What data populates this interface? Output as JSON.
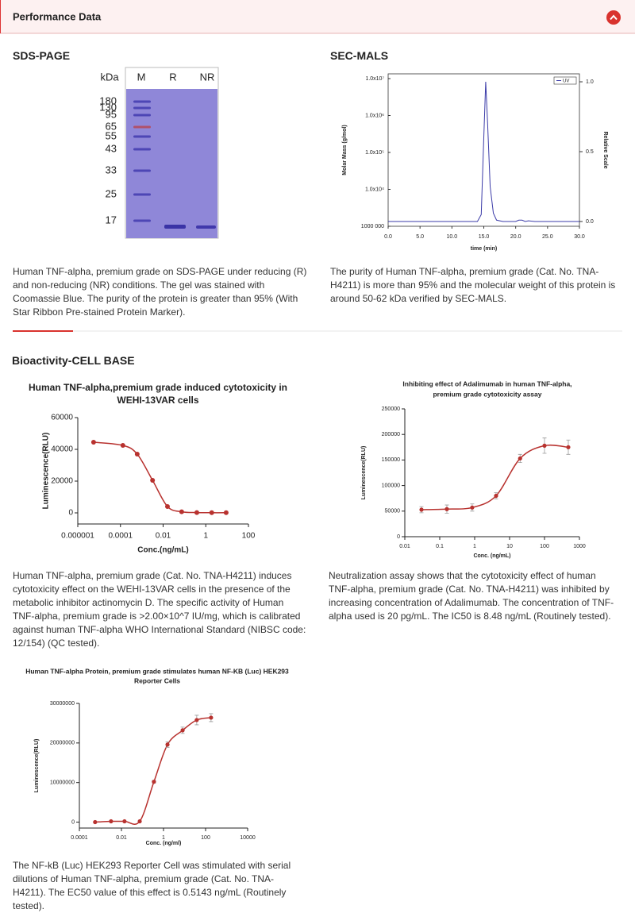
{
  "header": {
    "title": "Performance Data"
  },
  "sds_page": {
    "heading": "SDS-PAGE",
    "gel": {
      "column_labels": [
        "kDa",
        "M",
        "R",
        "NR"
      ],
      "marker_kda": [
        180,
        130,
        95,
        65,
        55,
        43,
        33,
        25,
        17
      ]
    },
    "caption": "Human TNF-alpha, premium grade on SDS-PAGE under reducing (R) and non-reducing (NR) conditions. The gel was stained with Coomassie Blue. The purity of the protein is greater than 95% (With Star Ribbon Pre-stained Protein Marker)."
  },
  "sec_mals": {
    "heading": "SEC-MALS",
    "chart_data": {
      "type": "line",
      "x_label": "time (min)",
      "y_label": "Molar Mass (g/mol)",
      "y2_label": "Relative Scale",
      "ytick_labels": [
        "1.0x10⁷",
        "1.0x10⁶",
        "1.0x10⁵",
        "1.0x10⁴",
        "1000 000"
      ],
      "x": [
        0,
        14,
        14.6,
        15,
        15.3,
        15.6,
        16,
        16.5,
        17,
        18,
        20,
        20.5,
        21,
        21.5,
        22,
        23,
        30
      ],
      "series": [
        {
          "name": "UV",
          "color": "#3b3ba8",
          "axis": "y2",
          "values": [
            0,
            0,
            0.05,
            0.6,
            1.0,
            0.7,
            0.25,
            0.06,
            0.01,
            0,
            0,
            0.01,
            0.01,
            0,
            0.005,
            0,
            0
          ]
        }
      ],
      "xlim": [
        0,
        30
      ],
      "xticks": [
        {
          "value": 0,
          "label": "0.0"
        },
        {
          "value": 5,
          "label": "5.0"
        },
        {
          "value": 10,
          "label": "10.0"
        },
        {
          "value": 15,
          "label": "15.0"
        },
        {
          "value": 20,
          "label": "20.0"
        },
        {
          "value": 25,
          "label": "25.0"
        },
        {
          "value": 30,
          "label": "30.0"
        }
      ],
      "y2lim": [
        -0.034,
        1.057
      ],
      "y2ticks": [
        {
          "value": 0,
          "label": "0.0"
        },
        0.5,
        {
          "value": 1,
          "label": "1.0"
        }
      ],
      "legend": "top-right"
    },
    "caption": "The purity of Human TNF-alpha, premium grade (Cat. No. TNA-H4211) is more than 95% and the molecular weight of this protein is around 50-62 kDa verified by SEC-MALS."
  },
  "bioactivity": {
    "heading": "Bioactivity-CELL BASE",
    "assays": [
      {
        "chart_data": {
          "type": "scatter",
          "xscale": "log",
          "color": "#b8322f",
          "title": [
            "Human TNF-alpha,premium grade induced cytotoxicity in",
            "WEHI-13VAR cells"
          ],
          "x_label": "Conc.(ng/mL)",
          "y_label": "Luminescence(RLU)",
          "x": [
            5.5e-06,
            0.00013,
            0.00061,
            0.0032,
            0.016,
            0.074,
            0.38,
            1.9,
            9.0
          ],
          "values": [
            44500,
            42500,
            37000,
            20500,
            4000,
            700,
            200,
            100,
            100
          ],
          "xlim": [
            1e-06,
            100
          ],
          "xticks": [
            1e-06,
            0.0001,
            0.01,
            1,
            100
          ],
          "ylim": [
            -7000,
            60000
          ],
          "yticks": [
            0,
            20000,
            40000,
            60000
          ]
        },
        "caption": "Human TNF-alpha, premium grade (Cat. No. TNA-H4211) induces cytotoxicity effect on the WEHI-13VAR cells in the presence of the metabolic inhibitor actinomycin D. The specific activity of Human TNF-alpha, premium grade is >2.00×10^7 IU/mg, which is calibrated against human TNF-alpha WHO International Standard (NIBSC code: 12/154) (QC tested)."
      },
      {
        "chart_data": {
          "type": "scatter",
          "xscale": "log",
          "color": "#b8322f",
          "title": [
            "Inhibiting effect of Adalimumab in human TNF-alpha,",
            "premium grade cytotoxicity assay"
          ],
          "x_label": "Conc. (ng/mL)",
          "y_label": "Luminescence(RLU)",
          "x": [
            0.03,
            0.16,
            0.85,
            4.1,
            20,
            100,
            480
          ],
          "values": [
            52800,
            54000,
            57000,
            80000,
            153000,
            178000,
            175000
          ],
          "errors": [
            6000,
            8000,
            7000,
            6000,
            8000,
            15000,
            14000
          ],
          "xlim": [
            0.01,
            1000
          ],
          "xticks": [
            0.01,
            0.1,
            1,
            10,
            100,
            1000
          ],
          "ylim": [
            0,
            250000
          ],
          "yticks": [
            0,
            50000,
            100000,
            150000,
            200000,
            250000
          ]
        },
        "caption": "Neutralization assay shows that the cytotoxicity effect of human TNF-alpha, premium grade (Cat. No. TNA-H4211) was inhibited by increasing concentration of Adalimumab. The concentration of TNF-alpha used is 20 pg/mL. The IC50 is 8.48 ng/mL (Routinely tested)."
      },
      {
        "chart_data": {
          "type": "scatter",
          "xscale": "log",
          "color": "#b8322f",
          "title": [
            "Human TNF-alpha Protein, premium grade stimulates human NF-KB (Luc) HEK293",
            "Reporter Cells"
          ],
          "x_label": "Conc. (ng/ml)",
          "y_label": "Luminescence(RLU)",
          "x": [
            0.00056,
            0.0032,
            0.014,
            0.074,
            0.35,
            1.55,
            8.1,
            38,
            182
          ],
          "values": [
            0,
            200000,
            200000,
            200000,
            10200000,
            19600000,
            23200000,
            25800000,
            26400000
          ],
          "errors": [
            0,
            0,
            0,
            0,
            300000,
            700000,
            800000,
            1200000,
            1000000
          ],
          "xlim": [
            0.0001,
            10000
          ],
          "xticks": [
            0.0001,
            0.01,
            1,
            100,
            10000
          ],
          "ylim": [
            -1500000,
            30000000
          ],
          "yticks": [
            0,
            10000000,
            20000000,
            30000000
          ]
        },
        "caption": "The NF-kB (Luc) HEK293 Reporter Cell was stimulated with serial dilutions of Human TNF-alpha, premium grade (Cat. No. TNA-H4211). The EC50 value of this effect is 0.5143 ng/mL (Routinely tested)."
      }
    ]
  }
}
